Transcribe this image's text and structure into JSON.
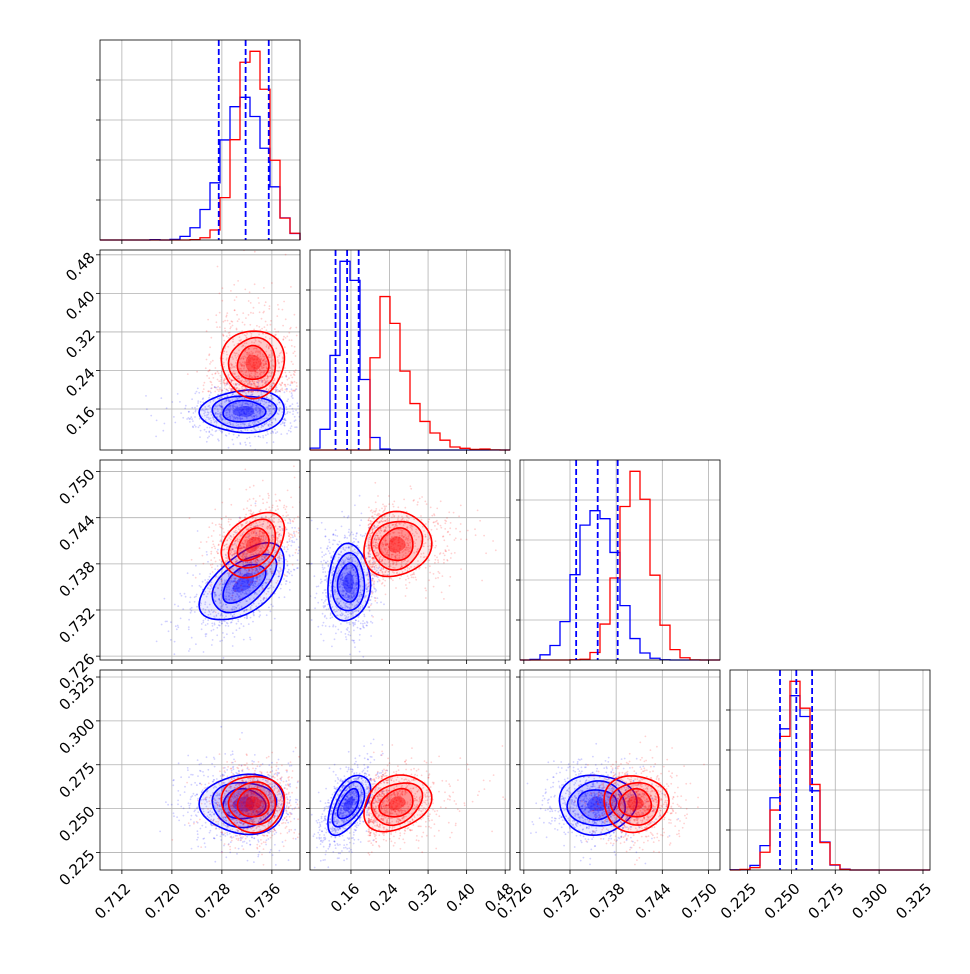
{
  "chart_data": {
    "type": "corner",
    "colors": {
      "blue": "#0000ff",
      "red": "#ff0000"
    },
    "series": [
      {
        "color": "#0000ff"
      },
      {
        "color": "#ff0000"
      }
    ],
    "variables": [
      {
        "range": [
          0.7085,
          0.7405
        ],
        "ticks": [
          0.712,
          0.72,
          0.728,
          0.736
        ],
        "tick_labels": [
          "0.712",
          "0.720",
          "0.728",
          "0.736"
        ],
        "hist_ylim": [
          0,
          1.0
        ],
        "blue": {
          "mean": 0.7315,
          "sd": 0.0034,
          "quantiles": [
            0.7275,
            0.7318,
            0.7355
          ]
        },
        "red": {
          "mean": 0.733,
          "sd": 0.0025,
          "quantiles": null
        }
      },
      {
        "range": [
          0.075,
          0.49
        ],
        "ticks": [
          0.16,
          0.24,
          0.32,
          0.4,
          0.48
        ],
        "tick_labels": [
          "0.16",
          "0.24",
          "0.32",
          "0.40",
          "0.48"
        ],
        "hist_ylim": [
          0,
          1.0
        ],
        "blue": {
          "mean": 0.155,
          "sd": 0.022,
          "quantiles": [
            0.128,
            0.152,
            0.176
          ]
        },
        "red": {
          "mean": 0.255,
          "sd": 0.035,
          "skew": true,
          "quantiles": null
        }
      },
      {
        "range": [
          0.7255,
          0.7515
        ],
        "ticks": [
          0.726,
          0.732,
          0.738,
          0.744,
          0.75
        ],
        "tick_labels": [
          "0.726",
          "0.732",
          "0.738",
          "0.744",
          "0.750"
        ],
        "hist_ylim": [
          0,
          1.0
        ],
        "blue": {
          "mean": 0.7355,
          "sd": 0.0025,
          "quantiles": [
            0.7328,
            0.7356,
            0.7382
          ]
        },
        "red": {
          "mean": 0.7405,
          "sd": 0.0021,
          "quantiles": null
        }
      },
      {
        "range": [
          0.215,
          0.329
        ],
        "ticks": [
          0.225,
          0.25,
          0.275,
          0.3,
          0.325
        ],
        "tick_labels": [
          "0.225",
          "0.250",
          "0.275",
          "0.300",
          "0.325"
        ],
        "hist_ylim": [
          0,
          1.0
        ],
        "blue": {
          "mean": 0.2525,
          "sd": 0.0085,
          "quantiles": [
            0.2435,
            0.2528,
            0.2618
          ]
        },
        "red": {
          "mean": 0.253,
          "sd": 0.008,
          "quantiles": null
        }
      }
    ],
    "correlations": {
      "blue": {
        "1-0": 0.05,
        "2-0": 0.55,
        "2-1": 0.05,
        "3-0": 0.0,
        "3-1": 0.55,
        "3-2": 0.0
      },
      "red": {
        "1-0": 0.0,
        "2-0": 0.35,
        "2-1": 0.1,
        "3-0": 0.0,
        "3-1": 0.25,
        "3-2": 0.0
      }
    },
    "grid": true
  }
}
